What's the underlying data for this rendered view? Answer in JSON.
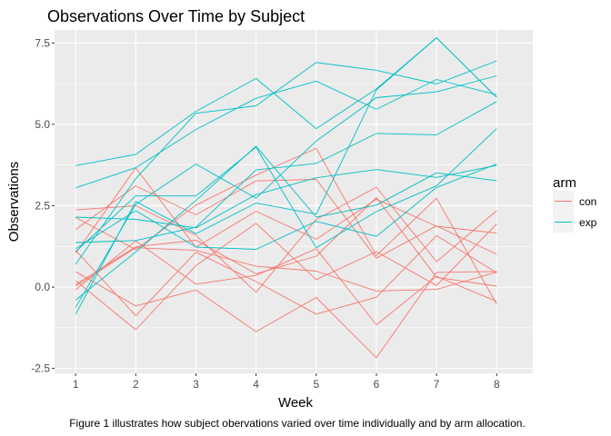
{
  "chart_data": {
    "type": "line",
    "title": "Observations Over Time by Subject",
    "xlabel": "Week",
    "ylabel": "Observations",
    "caption": "Figure 1 illustrates how subject obervations varied over time individually and by arm allocation.",
    "x": [
      1,
      2,
      3,
      4,
      5,
      6,
      7,
      8
    ],
    "x_ticks": [
      "1",
      "2",
      "3",
      "4",
      "5",
      "6",
      "7",
      "8"
    ],
    "y_ticks": [
      {
        "value": -2.5,
        "label": "-2.5"
      },
      {
        "value": 0,
        "label": "0.0"
      },
      {
        "value": 2.5,
        "label": "2.5"
      },
      {
        "value": 5,
        "label": "5.0"
      },
      {
        "value": 7.5,
        "label": "7.5"
      }
    ],
    "xlim": [
      0.65,
      8.6
    ],
    "ylim": [
      -2.65,
      7.9
    ],
    "grid": true,
    "legend": {
      "title": "arm",
      "placement": "right",
      "entries": [
        {
          "label": "con",
          "color": "#F8766D"
        },
        {
          "label": "exp",
          "color": "#00BFC4"
        }
      ]
    },
    "series": [
      {
        "group": "con",
        "values": [
          0.2,
          -1.31,
          0.66,
          1.96,
          0.23,
          1.09,
          0.05,
          1.94
        ]
      },
      {
        "group": "con",
        "values": [
          1.13,
          -0.88,
          1.07,
          0.17,
          -0.83,
          -0.31,
          1.58,
          0.44
        ]
      },
      {
        "group": "con",
        "values": [
          1.77,
          3.11,
          2.22,
          3.26,
          3.31,
          0.89,
          1.88,
          1.01
        ]
      },
      {
        "group": "con",
        "values": [
          1.04,
          3.66,
          1.22,
          2.33,
          1.47,
          2.7,
          1.87,
          1.66
        ]
      },
      {
        "group": "con",
        "values": [
          0.47,
          -0.58,
          -0.09,
          -1.37,
          -0.32,
          -2.17,
          0.45,
          0.48
        ]
      },
      {
        "group": "con",
        "values": [
          2.37,
          2.5,
          1.59,
          -0.16,
          2.08,
          3.07,
          0.78,
          2.35
        ]
      },
      {
        "group": "con",
        "values": [
          0.03,
          1.21,
          1.13,
          0.64,
          0.49,
          -0.12,
          -0.07,
          0.46
        ]
      },
      {
        "group": "con",
        "values": [
          -0.08,
          1.42,
          0.09,
          0.36,
          1.18,
          -1.16,
          0.33,
          -0.44
        ]
      },
      {
        "group": "con",
        "values": [
          0.08,
          1.24,
          1.44,
          0.41,
          0.95,
          2.75,
          0.3,
          0.03
        ]
      },
      {
        "group": "con",
        "values": [
          2.14,
          1.15,
          2.52,
          3.44,
          4.26,
          0.97,
          2.73,
          -0.53
        ]
      },
      {
        "group": "exp",
        "values": [
          3.05,
          3.67,
          4.84,
          5.8,
          6.33,
          5.46,
          6.38,
          5.91
        ]
      },
      {
        "group": "exp",
        "values": [
          -0.84,
          2.63,
          1.64,
          2.58,
          2.24,
          6.06,
          7.66,
          5.83
        ]
      },
      {
        "group": "exp",
        "values": [
          2.15,
          2.08,
          1.82,
          2.84,
          3.36,
          3.61,
          3.37,
          3.74
        ]
      },
      {
        "group": "exp",
        "values": [
          -0.62,
          2.54,
          3.78,
          2.73,
          4.49,
          5.82,
          6.0,
          6.49
        ]
      },
      {
        "group": "exp",
        "values": [
          0.7,
          3.33,
          5.34,
          5.57,
          6.9,
          6.66,
          6.24,
          6.95
        ]
      },
      {
        "group": "exp",
        "values": [
          3.73,
          4.08,
          5.4,
          6.41,
          4.87,
          6.09,
          7.66,
          5.83
        ]
      },
      {
        "group": "exp",
        "values": [
          1.18,
          2.35,
          1.23,
          1.16,
          2.02,
          1.56,
          3.06,
          3.78
        ]
      },
      {
        "group": "exp",
        "values": [
          1.37,
          1.43,
          1.84,
          3.6,
          3.8,
          4.72,
          4.68,
          5.7
        ]
      },
      {
        "group": "exp",
        "values": [
          -0.4,
          1.08,
          2.66,
          4.33,
          2.15,
          2.52,
          3.51,
          3.27
        ]
      },
      {
        "group": "exp",
        "values": [
          1.09,
          2.8,
          2.8,
          4.3,
          1.21,
          2.32,
          3.11,
          4.87
        ]
      }
    ]
  }
}
